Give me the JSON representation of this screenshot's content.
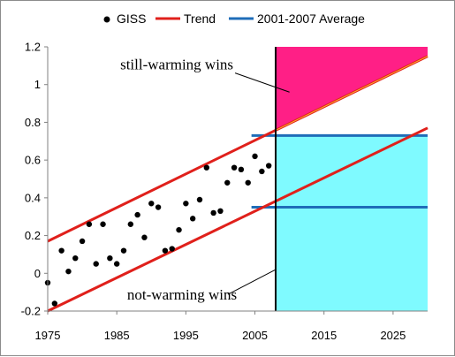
{
  "chart_data": {
    "type": "scatter",
    "xlim": [
      1975,
      2030
    ],
    "ylim": [
      -0.2,
      1.2
    ],
    "x_ticks": [
      "1975",
      "1985",
      "1995",
      "2005",
      "2015",
      "2025"
    ],
    "y_ticks": [
      "-0.2",
      "0",
      "0.2",
      "0.4",
      "0.6",
      "0.8",
      "1",
      "1.2"
    ],
    "grid": "none",
    "legend_position": "top",
    "legend": [
      "GISS",
      "Trend",
      "2001-2007 Average"
    ],
    "colors": {
      "giss": "#000000",
      "trend": "#e0201b",
      "average": "#1f6db8",
      "still_region": "#ff1f86",
      "not_region": "#7ffaff",
      "divider": "#000000"
    },
    "series": [
      {
        "name": "GISS",
        "type": "scatter",
        "points": [
          [
            1975,
            -0.05
          ],
          [
            1976,
            -0.16
          ],
          [
            1977,
            0.12
          ],
          [
            1978,
            0.01
          ],
          [
            1979,
            0.08
          ],
          [
            1980,
            0.17
          ],
          [
            1981,
            0.26
          ],
          [
            1982,
            0.05
          ],
          [
            1983,
            0.26
          ],
          [
            1984,
            0.08
          ],
          [
            1985,
            0.05
          ],
          [
            1986,
            0.12
          ],
          [
            1987,
            0.26
          ],
          [
            1988,
            0.31
          ],
          [
            1989,
            0.19
          ],
          [
            1990,
            0.37
          ],
          [
            1991,
            0.35
          ],
          [
            1992,
            0.12
          ],
          [
            1993,
            0.13
          ],
          [
            1994,
            0.23
          ],
          [
            1995,
            0.37
          ],
          [
            1996,
            0.29
          ],
          [
            1997,
            0.39
          ],
          [
            1998,
            0.56
          ],
          [
            1999,
            0.32
          ],
          [
            2000,
            0.33
          ],
          [
            2001,
            0.48
          ],
          [
            2002,
            0.56
          ],
          [
            2003,
            0.55
          ],
          [
            2004,
            0.48
          ],
          [
            2005,
            0.62
          ],
          [
            2006,
            0.54
          ],
          [
            2007,
            0.57
          ]
        ]
      },
      {
        "name": "Trend",
        "type": "line",
        "upper": [
          [
            1975,
            0.17
          ],
          [
            2030,
            1.15
          ]
        ],
        "lower": [
          [
            1975,
            -0.2
          ],
          [
            2030,
            0.77
          ]
        ]
      },
      {
        "name": "2001-2007 Average",
        "type": "line",
        "upper": [
          [
            2004.5,
            0.73
          ],
          [
            2030,
            0.73
          ]
        ],
        "lower": [
          [
            2004.5,
            0.35
          ],
          [
            2030,
            0.35
          ]
        ]
      }
    ],
    "divider_x": 2008,
    "annotations": [
      {
        "text": "still-warming wins",
        "text_at": [
          1985.5,
          1.08
        ],
        "arrow_to": [
          2010,
          0.96
        ]
      },
      {
        "text": "not-warming wins",
        "text_at": [
          1986.5,
          -0.14
        ],
        "arrow_to": [
          2008,
          0.02
        ]
      }
    ]
  }
}
